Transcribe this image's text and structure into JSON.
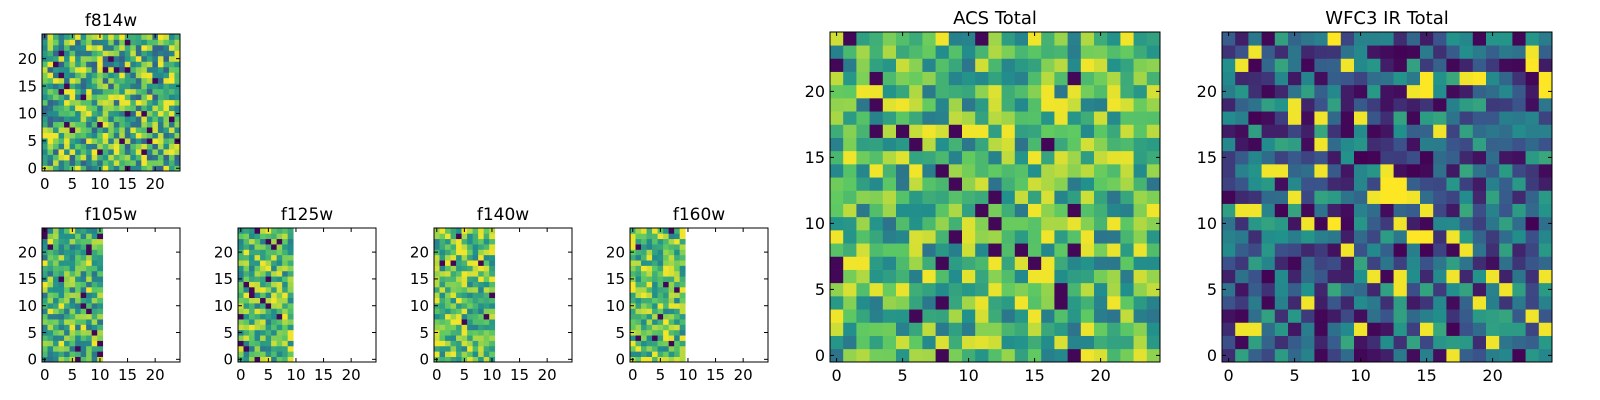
{
  "colormap": [
    "#440154",
    "#3b528b",
    "#21918c",
    "#5ec962",
    "#fde725"
  ],
  "chart_data": [
    {
      "type": "heatmap",
      "title": "f814w",
      "xlim": [
        -0.5,
        24.5
      ],
      "ylim": [
        -0.5,
        24.5
      ],
      "xticks": [
        0,
        5,
        10,
        15,
        20
      ],
      "yticks": [
        0,
        5,
        10,
        15,
        20
      ],
      "filled_columns": 25,
      "style": "fine",
      "level": 0.65
    },
    {
      "type": "heatmap",
      "title": "f105w",
      "xlim": [
        -0.5,
        24.5
      ],
      "ylim": [
        -0.5,
        24.5
      ],
      "xticks": [
        0,
        5,
        10,
        15,
        20
      ],
      "yticks": [
        0,
        5,
        10,
        15,
        20
      ],
      "filled_columns": 11,
      "style": "strips",
      "level": 0.65
    },
    {
      "type": "heatmap",
      "title": "f125w",
      "xlim": [
        -0.5,
        24.5
      ],
      "ylim": [
        -0.5,
        24.5
      ],
      "xticks": [
        0,
        5,
        10,
        15,
        20
      ],
      "yticks": [
        0,
        5,
        10,
        15,
        20
      ],
      "filled_columns": 10,
      "style": "strips",
      "level": 0.68
    },
    {
      "type": "heatmap",
      "title": "f140w",
      "xlim": [
        -0.5,
        24.5
      ],
      "ylim": [
        -0.5,
        24.5
      ],
      "xticks": [
        0,
        5,
        10,
        15,
        20
      ],
      "yticks": [
        0,
        5,
        10,
        15,
        20
      ],
      "filled_columns": 11,
      "style": "strips",
      "level": 0.7
    },
    {
      "type": "heatmap",
      "title": "f160w",
      "xlim": [
        -0.5,
        24.5
      ],
      "ylim": [
        -0.5,
        24.5
      ],
      "xticks": [
        0,
        5,
        10,
        15,
        20
      ],
      "yticks": [
        0,
        5,
        10,
        15,
        20
      ],
      "filled_columns": 10,
      "style": "strips",
      "level": 0.72
    },
    {
      "type": "heatmap",
      "title": "ACS Total",
      "xlim": [
        -0.5,
        24.5
      ],
      "ylim": [
        -0.5,
        24.5
      ],
      "xticks": [
        0,
        5,
        10,
        15,
        20
      ],
      "yticks": [
        0,
        5,
        10,
        15,
        20
      ],
      "filled_columns": 25,
      "style": "grid",
      "level": 0.68
    },
    {
      "type": "heatmap",
      "title": "WFC3 IR Total",
      "xlim": [
        -0.5,
        24.5
      ],
      "ylim": [
        -0.5,
        24.5
      ],
      "xticks": [
        0,
        5,
        10,
        15,
        20
      ],
      "yticks": [
        0,
        5,
        10,
        15,
        20
      ],
      "filled_columns": 25,
      "style": "grid",
      "level": 0.3,
      "bright_cells": [
        [
          12,
          13
        ],
        [
          13,
          13
        ],
        [
          12,
          12
        ],
        [
          13,
          12
        ],
        [
          8,
          10
        ],
        [
          14,
          9
        ],
        [
          15,
          9
        ],
        [
          15,
          21
        ],
        [
          15,
          20
        ],
        [
          19,
          21
        ],
        [
          23,
          22
        ],
        [
          24,
          21
        ],
        [
          24,
          20
        ],
        [
          8,
          24
        ]
      ]
    }
  ]
}
